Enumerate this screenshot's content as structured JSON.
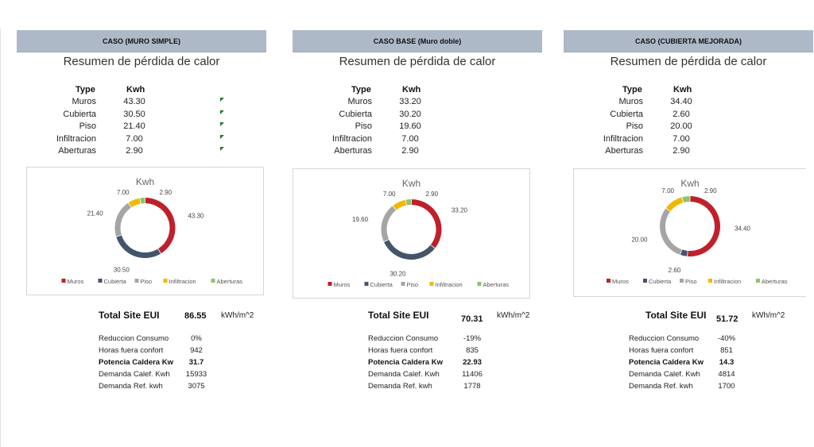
{
  "table_headers": {
    "type": "Type",
    "kwh": "Kwh"
  },
  "categories": [
    "Muros",
    "Cubierta",
    "Piso",
    "Infiltracion",
    "Aberturas"
  ],
  "colors": {
    "Muros": "#c0202a",
    "Cubierta": "#44546a",
    "Piso": "#a5a5a5",
    "Infiltracion": "#f2b800",
    "Aberturas": "#8fc46a"
  },
  "eui_label": "Total Site EUI",
  "eui_unit": "kWh/m^2",
  "metric_labels": [
    "Reduccion Consumo",
    "Horas fuera confort",
    "Potencia Caldera Kw",
    "Demanda Calef. Kwh",
    "Demanda Ref. kwh"
  ],
  "panels": [
    {
      "header": "CASO (MURO SIMPLE)",
      "subtitle": "Resumen de pérdida de calor",
      "rows": [
        {
          "label": "Muros",
          "value": "43.30"
        },
        {
          "label": "Cubierta",
          "value": "30.50"
        },
        {
          "label": "Piso",
          "value": "21.40"
        },
        {
          "label": "Infiltracion",
          "value": "7.00"
        },
        {
          "label": "Aberturas",
          "value": "2.90"
        }
      ],
      "eui_value": "86.55",
      "metrics": [
        "0%",
        "942",
        "31.7",
        "15933",
        "3075"
      ]
    },
    {
      "header": "CASO BASE (Muro doble)",
      "subtitle": "Resumen de pérdida de calor",
      "rows": [
        {
          "label": "Muros",
          "value": "33.20"
        },
        {
          "label": "Cubierta",
          "value": "30.20"
        },
        {
          "label": "Piso",
          "value": "19.60"
        },
        {
          "label": "Infiltracion",
          "value": "7.00"
        },
        {
          "label": "Aberturas",
          "value": "2.90"
        }
      ],
      "eui_value": "70.31",
      "metrics": [
        "-19%",
        "835",
        "22.93",
        "11406",
        "1778"
      ]
    },
    {
      "header": "CASO (CUBIERTA MEJORADA)",
      "subtitle": "Resumen de pérdida de calor",
      "rows": [
        {
          "label": "Muros",
          "value": "34.40"
        },
        {
          "label": "Cubierta",
          "value": "2.60"
        },
        {
          "label": "Piso",
          "value": "20.00"
        },
        {
          "label": "Infiltracion",
          "value": "7.00"
        },
        {
          "label": "Aberturas",
          "value": "2.90"
        }
      ],
      "eui_value": "51.72",
      "metrics": [
        "-40%",
        "851",
        "14.3",
        "4814",
        "1700"
      ]
    }
  ],
  "chart_data": [
    {
      "type": "pie",
      "title": "Kwh",
      "categories": [
        "Muros",
        "Cubierta",
        "Piso",
        "Infiltracion",
        "Aberturas"
      ],
      "values": [
        43.3,
        30.5,
        21.4,
        7.0,
        2.9
      ],
      "data_labels": [
        "43.30",
        "30.50",
        "21.40",
        "7.00",
        "2.90"
      ],
      "legend": "bottom"
    },
    {
      "type": "pie",
      "title": "Kwh",
      "categories": [
        "Muros",
        "Cubierta",
        "Piso",
        "Infiltracion",
        "Aberturas"
      ],
      "values": [
        33.2,
        30.2,
        19.6,
        7.0,
        2.9
      ],
      "data_labels": [
        "33.20",
        "30.20",
        "19.60",
        "7.00",
        "2.90"
      ],
      "legend": "bottom"
    },
    {
      "type": "pie",
      "title": "Kwh",
      "categories": [
        "Muros",
        "Cubierta",
        "Piso",
        "Infiltracion",
        "Aberturas"
      ],
      "values": [
        34.4,
        2.6,
        20.0,
        7.0,
        2.9
      ],
      "data_labels": [
        "34.40",
        "2.60",
        "20.00",
        "7.00",
        "2.90"
      ],
      "legend": "bottom"
    }
  ]
}
